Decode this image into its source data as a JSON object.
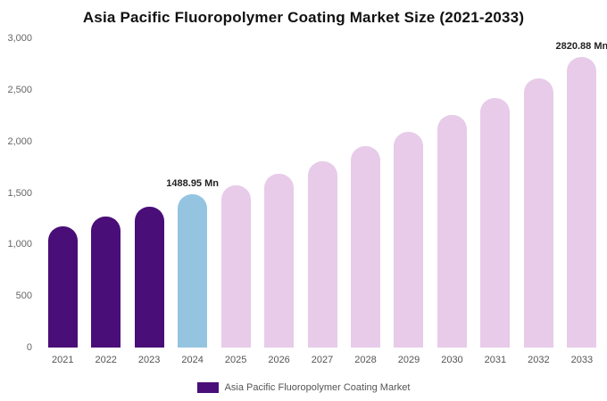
{
  "title": "Asia Pacific Fluoropolymer Coating Market Size (2021-2033)",
  "legend": {
    "label": "Asia Pacific Fluoropolymer Coating Market",
    "swatch_color": "#4a0e78"
  },
  "colors": {
    "historical": "#4a0e78",
    "current": "#94c4e0",
    "forecast": "#e7cbe9"
  },
  "chart_data": {
    "type": "bar",
    "title": "Asia Pacific Fluoropolymer Coating Market Size (2021-2033)",
    "xlabel": "",
    "ylabel": "",
    "unit": "Mn",
    "ylim": [
      0,
      3000
    ],
    "grid": false,
    "legend_position": "bottom",
    "categories": [
      "2021",
      "2022",
      "2023",
      "2024",
      "2025",
      "2026",
      "2027",
      "2028",
      "2029",
      "2030",
      "2031",
      "2032",
      "2033"
    ],
    "values": [
      1180,
      1275,
      1365,
      1488.95,
      1575,
      1690,
      1810,
      1950,
      2095,
      2255,
      2420,
      2610,
      2820.88
    ],
    "roles": [
      "historical",
      "historical",
      "historical",
      "current",
      "forecast",
      "forecast",
      "forecast",
      "forecast",
      "forecast",
      "forecast",
      "forecast",
      "forecast",
      "forecast"
    ],
    "annotations": [
      {
        "category": "2024",
        "text": "1488.95 Mn"
      },
      {
        "category": "2033",
        "text": "2820.88 Mn"
      }
    ],
    "yticks": [
      {
        "value": 0,
        "label": "0"
      },
      {
        "value": 500,
        "label": "500"
      },
      {
        "value": 1000,
        "label": "1,000"
      },
      {
        "value": 1500,
        "label": "1,500"
      },
      {
        "value": 2000,
        "label": "2,000"
      },
      {
        "value": 2500,
        "label": "2,500"
      },
      {
        "value": 3000,
        "label": "3,000"
      }
    ]
  }
}
